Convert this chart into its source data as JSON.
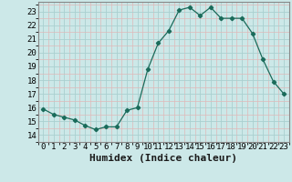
{
  "x": [
    0,
    1,
    2,
    3,
    4,
    5,
    6,
    7,
    8,
    9,
    10,
    11,
    12,
    13,
    14,
    15,
    16,
    17,
    18,
    19,
    20,
    21,
    22,
    23
  ],
  "y": [
    15.9,
    15.5,
    15.3,
    15.1,
    14.7,
    14.4,
    14.6,
    14.6,
    15.8,
    16.0,
    18.8,
    20.7,
    21.6,
    23.1,
    23.3,
    22.7,
    23.3,
    22.5,
    22.5,
    22.5,
    21.4,
    19.5,
    17.9,
    17.0
  ],
  "line_color": "#1a6b5a",
  "marker": "D",
  "marker_size": 2.2,
  "bg_color": "#cce8e8",
  "grid_major_color": "#aad0d0",
  "grid_minor_color": "#e0b8b8",
  "xlabel": "Humidex (Indice chaleur)",
  "ylim": [
    13.5,
    23.7
  ],
  "xlim": [
    -0.5,
    23.5
  ],
  "yticks": [
    14,
    15,
    16,
    17,
    18,
    19,
    20,
    21,
    22,
    23
  ],
  "xticks": [
    0,
    1,
    2,
    3,
    4,
    5,
    6,
    7,
    8,
    9,
    10,
    11,
    12,
    13,
    14,
    15,
    16,
    17,
    18,
    19,
    20,
    21,
    22,
    23
  ],
  "tick_fontsize": 6.5,
  "xlabel_fontsize": 8,
  "spine_color": "#888888"
}
